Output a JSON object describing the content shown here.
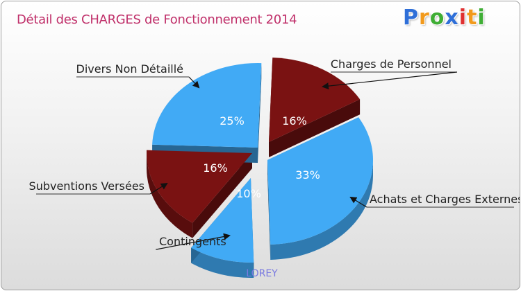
{
  "title": "Détail des CHARGES de Fonctionnement 2014",
  "brand": {
    "text": "Proxiti",
    "colors": [
      "#2f6fd8",
      "#f29a1c",
      "#3fae35",
      "#2f6fd8",
      "#e03030",
      "#f29a1c",
      "#3fae35"
    ]
  },
  "footer": "LOREY",
  "colors": {
    "blue": "#41aaf5",
    "dark_red": "#7a1212",
    "title": "#c0306a",
    "footer": "#7a7ae0"
  },
  "chart_data": {
    "type": "pie",
    "title": "Détail des CHARGES de Fonctionnement 2014",
    "slices": [
      {
        "label": "Charges de Personnel",
        "value": 16,
        "pct_label": "16%",
        "color": "#7a1212"
      },
      {
        "label": "Achats et Charges Externes",
        "value": 33,
        "pct_label": "33%",
        "color": "#41aaf5"
      },
      {
        "label": "Contingents",
        "value": 10,
        "pct_label": "10%",
        "color": "#41aaf5"
      },
      {
        "label": "Subventions Versées",
        "value": 16,
        "pct_label": "16%",
        "color": "#7a1212"
      },
      {
        "label": "Divers Non Détaillé",
        "value": 25,
        "pct_label": "25%",
        "color": "#41aaf5"
      }
    ],
    "exploded": true,
    "style": "3d"
  }
}
